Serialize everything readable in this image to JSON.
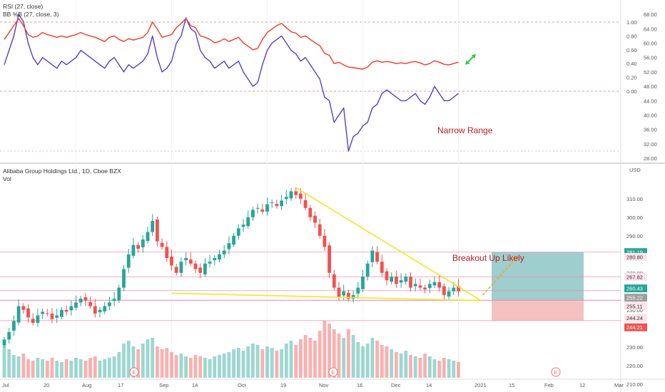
{
  "colors": {
    "up": "#26a69a",
    "down": "#ef5350",
    "rsi": "#5b3cc4",
    "bb": "#f23b22",
    "trend": "#f5e427",
    "level": "#f48fb1",
    "target_zone": "#4fa6a6",
    "stop_zone": "#ef9a9a",
    "annotation": "#b71c1c",
    "axis_text": "#555555"
  },
  "legend": {
    "rsi": "RSI (27, close)",
    "bb": "BB %B (27, close, 3)",
    "main_title": "Alibaba Group Holdings Ltd., 1D, Cboe BZX",
    "vol": "Vol"
  },
  "annotations": {
    "narrow_range": "Narrow Range",
    "breakout": "Breakout Up Likely"
  },
  "axis": {
    "currency": "USD",
    "x_labels": [
      "Jul",
      "20",
      "Aug",
      "17",
      "Sep",
      "14",
      "Oct",
      "19",
      "Nov",
      "16",
      "Dec",
      "14",
      "2021",
      "15",
      "Feb",
      "12",
      "Mar"
    ],
    "price_ticks": [
      "310.00",
      "300.00",
      "290.00",
      "270.00",
      "250.00",
      "240.00",
      "230.00",
      "220.00",
      "210.00"
    ],
    "rsi_ticks": [
      "68.00",
      "64.00",
      "60.00",
      "56.00",
      "52.00",
      "48.00",
      "44.00",
      "40.00",
      "36.00",
      "32.00",
      "28.00"
    ],
    "bb_ticks": [
      "1.00",
      "0.80",
      "0.60",
      "0.40",
      "0.20",
      "0.00"
    ],
    "earnings_marker": "E"
  },
  "price_badges": [
    {
      "text": "281.19",
      "bg": "#26a69a",
      "fg": "#ffffff"
    },
    {
      "text": "280.80",
      "bg": "#fde4ea",
      "fg": "#333333"
    },
    {
      "text": "267.82",
      "bg": "#fde4ea",
      "fg": "#333333"
    },
    {
      "text": "260.43",
      "bg": "#26a69a",
      "fg": "#ffffff"
    },
    {
      "text": "255.22",
      "bg": "#9e9e9e",
      "fg": "#ffffff"
    },
    {
      "text": "255.11",
      "bg": "#fde4ea",
      "fg": "#333333"
    },
    {
      "text": "244.24",
      "bg": "#fde4ea",
      "fg": "#333333"
    },
    {
      "text": "244.21",
      "bg": "#ef5350",
      "fg": "#ffffff"
    }
  ],
  "chart_data": [
    {
      "type": "line",
      "title": "RSI (27, close) / BB %B (27, close, 3)",
      "ylim_rsi": [
        28,
        70
      ],
      "ylim_bb": [
        -0.05,
        1.1
      ],
      "series": [
        {
          "name": "RSI (27, close)",
          "values": [
            54,
            58,
            62,
            68,
            66,
            60,
            56,
            54,
            56,
            55,
            54,
            53,
            55,
            54,
            55,
            56,
            58,
            57,
            56,
            55,
            54,
            53,
            55,
            56,
            54,
            52,
            54,
            53,
            54,
            55,
            57,
            62,
            56,
            52,
            53,
            55,
            60,
            62,
            67,
            64,
            63,
            58,
            56,
            55,
            53,
            54,
            55,
            53,
            54,
            55,
            52,
            50,
            48,
            49,
            54,
            58,
            60,
            61,
            62,
            60,
            58,
            57,
            55,
            56,
            54,
            52,
            50,
            45,
            44,
            38,
            40,
            42,
            30,
            34,
            35,
            37,
            38,
            42,
            43,
            46,
            47,
            46,
            45,
            44,
            44,
            45,
            46,
            44,
            43,
            45,
            48,
            46,
            44,
            44,
            45,
            46
          ]
        },
        {
          "name": "BB %B (27, close, 3)",
          "values": [
            0.75,
            0.85,
            0.95,
            1.05,
            0.95,
            0.82,
            0.78,
            0.8,
            0.85,
            0.82,
            0.8,
            0.78,
            0.8,
            0.78,
            0.8,
            0.82,
            0.85,
            0.82,
            0.8,
            0.78,
            0.75,
            0.72,
            0.78,
            0.8,
            0.75,
            0.72,
            0.76,
            0.74,
            0.76,
            0.78,
            0.85,
            1.0,
            0.9,
            0.78,
            0.8,
            0.82,
            0.92,
            0.98,
            1.05,
            0.95,
            0.92,
            0.8,
            0.78,
            0.75,
            0.7,
            0.72,
            0.76,
            0.72,
            0.75,
            0.78,
            0.7,
            0.65,
            0.6,
            0.62,
            0.75,
            0.85,
            0.9,
            0.95,
            0.98,
            0.92,
            0.86,
            0.84,
            0.78,
            0.8,
            0.75,
            0.7,
            0.66,
            0.55,
            0.52,
            0.4,
            0.42,
            0.38,
            0.35,
            0.34,
            0.33,
            0.32,
            0.35,
            0.42,
            0.44,
            0.42,
            0.43,
            0.42,
            0.4,
            0.41,
            0.4,
            0.42,
            0.43,
            0.41,
            0.38,
            0.4,
            0.44,
            0.42,
            0.39,
            0.38,
            0.4,
            0.42
          ]
        }
      ]
    },
    {
      "type": "candlestick",
      "title": "Alibaba Group Holdings Ltd., 1D, Cboe BZX",
      "ylabel": "USD",
      "ylim": [
        205,
        318
      ],
      "close": [
        234,
        238,
        244,
        252,
        250,
        246,
        243,
        247,
        249,
        248,
        245,
        247,
        250,
        249,
        252,
        254,
        256,
        255,
        252,
        248,
        250,
        252,
        254,
        256,
        262,
        272,
        280,
        285,
        283,
        288,
        292,
        298,
        287,
        284,
        278,
        274,
        270,
        276,
        278,
        275,
        272,
        270,
        275,
        276,
        278,
        280,
        282,
        286,
        290,
        294,
        296,
        300,
        304,
        305,
        303,
        307,
        308,
        306,
        309,
        311,
        314,
        312,
        310,
        305,
        300,
        297,
        290,
        284,
        270,
        262,
        257,
        260,
        256,
        258,
        262,
        268,
        275,
        282,
        276,
        270,
        266,
        268,
        264,
        266,
        268,
        262,
        264,
        262,
        261,
        264,
        265,
        262,
        258,
        260,
        262,
        260
      ],
      "volume": [
        24,
        20,
        16,
        15,
        17,
        13,
        12,
        14,
        13,
        12,
        14,
        12,
        11,
        13,
        12,
        14,
        13,
        12,
        14,
        15,
        12,
        13,
        14,
        15,
        18,
        24,
        26,
        22,
        20,
        24,
        27,
        28,
        22,
        20,
        21,
        18,
        16,
        17,
        15,
        14,
        16,
        15,
        14,
        13,
        15,
        16,
        17,
        18,
        20,
        21,
        19,
        22,
        24,
        23,
        20,
        22,
        21,
        19,
        20,
        24,
        26,
        23,
        27,
        30,
        28,
        26,
        33,
        40,
        38,
        34,
        31,
        28,
        34,
        30,
        25,
        22,
        24,
        28,
        26,
        23,
        22,
        20,
        18,
        17,
        19,
        16,
        15,
        14,
        17,
        15,
        13,
        12,
        14,
        13,
        12,
        11
      ],
      "levels": [
        281.19,
        267.82,
        260.43,
        255.22,
        255.11,
        244.24
      ],
      "trendlines": [
        {
          "from": [
            35,
            259
          ],
          "to": [
            99,
            255
          ]
        },
        {
          "from": [
            61,
            316
          ],
          "to": [
            99,
            255
          ]
        }
      ],
      "zones": [
        {
          "label": "target",
          "price_from": 255.22,
          "price_to": 281.19
        },
        {
          "label": "stop",
          "price_from": 244.21,
          "price_to": 255.22
        }
      ]
    }
  ]
}
